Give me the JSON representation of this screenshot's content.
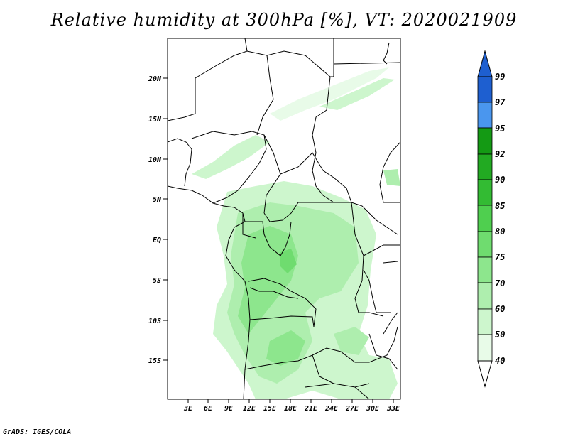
{
  "title": "Relative humidity at 300hPa [%], VT: 2020021909",
  "credit": "GrADS: IGES/COLA",
  "map": {
    "lon_range": [
      0,
      34
    ],
    "lat_range": [
      -20,
      25
    ],
    "x_ticks": [
      "3E",
      "6E",
      "9E",
      "12E",
      "15E",
      "18E",
      "21E",
      "24E",
      "27E",
      "30E",
      "33E"
    ],
    "y_ticks": [
      "20N",
      "15N",
      "10N",
      "5N",
      "EQ",
      "5S",
      "10S",
      "15S"
    ]
  },
  "colorbar": {
    "levels": [
      "99",
      "97",
      "95",
      "92",
      "90",
      "85",
      "80",
      "75",
      "70",
      "60",
      "50",
      "40"
    ],
    "colors": [
      "#1e5fd0",
      "#2f78e6",
      "#4a96ee",
      "#149a14",
      "#22aa22",
      "#33bb33",
      "#4fcf4f",
      "#6fdc6f",
      "#8de68d",
      "#aeeeae",
      "#cdf6cd",
      "#e8fbe8"
    ]
  }
}
